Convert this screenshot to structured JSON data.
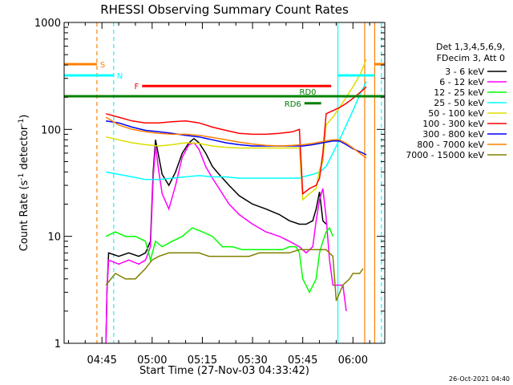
{
  "chart_data": {
    "type": "line",
    "title": "RHESSI Observing Summary Count Rates",
    "ylabel_main": "Count Rate (s",
    "ylabel_sup1": "-1",
    "ylabel_mid": " detector",
    "ylabel_sup2": "-1",
    "ylabel_end": ")",
    "xlabel": "Start Time (27-Nov-03 04:33:42)",
    "footer": "26-Oct-2021 04:40",
    "ylog": true,
    "ylim": [
      1,
      1000
    ],
    "xlim_minutes": [
      273.7,
      369.5
    ],
    "yticks": [
      {
        "v": 1,
        "label": "1"
      },
      {
        "v": 10,
        "label": "10"
      },
      {
        "v": 100,
        "label": "100"
      },
      {
        "v": 1000,
        "label": "1000"
      }
    ],
    "xticks": [
      {
        "t": 285,
        "label": "04:45"
      },
      {
        "t": 300,
        "label": "05:00"
      },
      {
        "t": 315,
        "label": "05:15"
      },
      {
        "t": 330,
        "label": "05:30"
      },
      {
        "t": 345,
        "label": "05:45"
      },
      {
        "t": 360,
        "label": "06:00"
      }
    ],
    "legend_header": [
      "Det 1,3,4,5,6,9,",
      "FDecim 3, Att 0"
    ],
    "series": [
      {
        "name": "3 - 6 keV",
        "color": "#000000",
        "points": [
          [
            286.2,
            1
          ],
          [
            286.5,
            3
          ],
          [
            287,
            7
          ],
          [
            290,
            6.5
          ],
          [
            293,
            7
          ],
          [
            296,
            6.5
          ],
          [
            298,
            7
          ],
          [
            299.5,
            9
          ],
          [
            300.3,
            40
          ],
          [
            301,
            80
          ],
          [
            302,
            55
          ],
          [
            303,
            38
          ],
          [
            305,
            30
          ],
          [
            307,
            40
          ],
          [
            309,
            60
          ],
          [
            311,
            75
          ],
          [
            312.5,
            82
          ],
          [
            314,
            75
          ],
          [
            316,
            60
          ],
          [
            318,
            45
          ],
          [
            320,
            38
          ],
          [
            323,
            30
          ],
          [
            326,
            24
          ],
          [
            330,
            20
          ],
          [
            334,
            18
          ],
          [
            338,
            16
          ],
          [
            341,
            14
          ],
          [
            344,
            13
          ],
          [
            346,
            13
          ],
          [
            348,
            14
          ],
          [
            349,
            18
          ],
          [
            350,
            26
          ],
          [
            351,
            14
          ],
          [
            352,
            13
          ]
        ]
      },
      {
        "name": "6 - 12 keV",
        "color": "#ff00ff",
        "points": [
          [
            286.2,
            1
          ],
          [
            286.5,
            3
          ],
          [
            287,
            6
          ],
          [
            290,
            5.5
          ],
          [
            293,
            6
          ],
          [
            296,
            5.5
          ],
          [
            298,
            6
          ],
          [
            299.5,
            8
          ],
          [
            300.3,
            35
          ],
          [
            301,
            70
          ],
          [
            302,
            40
          ],
          [
            303,
            25
          ],
          [
            305,
            18
          ],
          [
            307,
            30
          ],
          [
            309,
            55
          ],
          [
            311,
            72
          ],
          [
            312.5,
            75
          ],
          [
            314,
            65
          ],
          [
            316,
            45
          ],
          [
            318,
            35
          ],
          [
            320,
            28
          ],
          [
            323,
            20
          ],
          [
            326,
            16
          ],
          [
            330,
            13
          ],
          [
            334,
            11
          ],
          [
            338,
            10
          ],
          [
            341,
            9
          ],
          [
            344,
            8
          ],
          [
            346,
            7
          ],
          [
            348,
            8
          ],
          [
            349,
            14
          ],
          [
            350,
            22
          ],
          [
            351,
            28
          ],
          [
            352,
            15
          ],
          [
            353,
            6
          ],
          [
            354,
            3.5
          ],
          [
            357,
            3.5
          ],
          [
            358,
            2
          ]
        ]
      },
      {
        "name": "12 - 25 keV",
        "color": "#00ff00",
        "points": [
          [
            286.2,
            10
          ],
          [
            289,
            11
          ],
          [
            292,
            10
          ],
          [
            295,
            10
          ],
          [
            298,
            9
          ],
          [
            299.5,
            6
          ],
          [
            301,
            9
          ],
          [
            303,
            8
          ],
          [
            306,
            9
          ],
          [
            309,
            10
          ],
          [
            312,
            12
          ],
          [
            315,
            11
          ],
          [
            318,
            10
          ],
          [
            321,
            8
          ],
          [
            324,
            8
          ],
          [
            327,
            7.5
          ],
          [
            330,
            7.5
          ],
          [
            333,
            7.5
          ],
          [
            336,
            7.5
          ],
          [
            339,
            7.5
          ],
          [
            341,
            8
          ],
          [
            343,
            8
          ],
          [
            344,
            7
          ],
          [
            345,
            4
          ],
          [
            347,
            3
          ],
          [
            349,
            4
          ],
          [
            350,
            7
          ],
          [
            351,
            9
          ],
          [
            352,
            11
          ],
          [
            353,
            12
          ],
          [
            354,
            10
          ]
        ]
      },
      {
        "name": "25 - 50 keV",
        "color": "#00ffff",
        "points": [
          [
            286.2,
            40
          ],
          [
            290,
            38
          ],
          [
            294,
            36
          ],
          [
            298,
            34
          ],
          [
            302,
            34
          ],
          [
            306,
            35
          ],
          [
            310,
            36
          ],
          [
            314,
            37
          ],
          [
            318,
            36
          ],
          [
            322,
            36
          ],
          [
            326,
            35
          ],
          [
            330,
            35
          ],
          [
            334,
            35
          ],
          [
            338,
            35
          ],
          [
            342,
            35
          ],
          [
            344,
            35
          ],
          [
            345,
            36
          ],
          [
            348,
            38
          ],
          [
            350,
            40
          ],
          [
            352,
            45
          ],
          [
            354,
            60
          ],
          [
            356,
            80
          ],
          [
            358,
            110
          ],
          [
            360,
            150
          ],
          [
            362,
            210
          ],
          [
            364,
            280
          ]
        ]
      },
      {
        "name": "50 - 100 keV",
        "color": "#dddd00",
        "points": [
          [
            286.2,
            85
          ],
          [
            290,
            80
          ],
          [
            294,
            75
          ],
          [
            298,
            72
          ],
          [
            302,
            70
          ],
          [
            306,
            72
          ],
          [
            310,
            75
          ],
          [
            314,
            74
          ],
          [
            318,
            70
          ],
          [
            322,
            68
          ],
          [
            326,
            67
          ],
          [
            330,
            67
          ],
          [
            334,
            67
          ],
          [
            338,
            67
          ],
          [
            342,
            67
          ],
          [
            344,
            67
          ],
          [
            345,
            22
          ],
          [
            347,
            25
          ],
          [
            349,
            28
          ],
          [
            350,
            42
          ],
          [
            351,
            50
          ],
          [
            352,
            110
          ],
          [
            354,
            130
          ],
          [
            356,
            160
          ],
          [
            358,
            200
          ],
          [
            360,
            250
          ],
          [
            362,
            320
          ],
          [
            364,
            450
          ]
        ]
      },
      {
        "name": "100 - 300 keV",
        "color": "#ff0000",
        "points": [
          [
            286.2,
            140
          ],
          [
            290,
            130
          ],
          [
            294,
            120
          ],
          [
            298,
            115
          ],
          [
            302,
            115
          ],
          [
            306,
            118
          ],
          [
            310,
            120
          ],
          [
            314,
            115
          ],
          [
            318,
            105
          ],
          [
            322,
            98
          ],
          [
            326,
            92
          ],
          [
            330,
            90
          ],
          [
            334,
            90
          ],
          [
            338,
            92
          ],
          [
            342,
            95
          ],
          [
            344,
            100
          ],
          [
            345,
            25
          ],
          [
            347,
            28
          ],
          [
            349,
            30
          ],
          [
            350,
            35
          ],
          [
            351,
            60
          ],
          [
            352,
            140
          ],
          [
            354,
            150
          ],
          [
            356,
            160
          ],
          [
            358,
            175
          ],
          [
            360,
            195
          ],
          [
            362,
            220
          ],
          [
            364,
            250
          ]
        ]
      },
      {
        "name": "300 - 800 keV",
        "color": "#0000ff",
        "points": [
          [
            286.2,
            120
          ],
          [
            290,
            115
          ],
          [
            294,
            105
          ],
          [
            298,
            98
          ],
          [
            302,
            95
          ],
          [
            306,
            92
          ],
          [
            310,
            88
          ],
          [
            314,
            85
          ],
          [
            318,
            80
          ],
          [
            322,
            75
          ],
          [
            326,
            72
          ],
          [
            330,
            70
          ],
          [
            334,
            70
          ],
          [
            338,
            70
          ],
          [
            342,
            70
          ],
          [
            345,
            70
          ],
          [
            348,
            72
          ],
          [
            351,
            75
          ],
          [
            354,
            78
          ],
          [
            356,
            78
          ],
          [
            358,
            72
          ],
          [
            360,
            66
          ],
          [
            362,
            62
          ],
          [
            364,
            58
          ]
        ]
      },
      {
        "name": "800 - 7000 keV",
        "color": "#ff8000",
        "points": [
          [
            286.2,
            130
          ],
          [
            290,
            110
          ],
          [
            294,
            100
          ],
          [
            298,
            95
          ],
          [
            302,
            92
          ],
          [
            306,
            90
          ],
          [
            310,
            90
          ],
          [
            314,
            88
          ],
          [
            318,
            84
          ],
          [
            322,
            80
          ],
          [
            326,
            76
          ],
          [
            330,
            73
          ],
          [
            334,
            71
          ],
          [
            338,
            70
          ],
          [
            342,
            71
          ],
          [
            345,
            72
          ],
          [
            348,
            74
          ],
          [
            351,
            77
          ],
          [
            354,
            80
          ],
          [
            356,
            80
          ],
          [
            358,
            74
          ],
          [
            360,
            67
          ],
          [
            362,
            60
          ],
          [
            364,
            54
          ]
        ]
      },
      {
        "name": "7000 - 15000 keV",
        "color": "#808000",
        "points": [
          [
            286.2,
            3.5
          ],
          [
            289,
            4.5
          ],
          [
            292,
            4
          ],
          [
            295,
            4
          ],
          [
            298,
            5
          ],
          [
            300,
            6
          ],
          [
            302,
            6.5
          ],
          [
            305,
            7
          ],
          [
            308,
            7
          ],
          [
            311,
            7
          ],
          [
            314,
            7
          ],
          [
            317,
            6.5
          ],
          [
            320,
            6.5
          ],
          [
            323,
            6.5
          ],
          [
            326,
            6.5
          ],
          [
            329,
            6.5
          ],
          [
            332,
            7
          ],
          [
            335,
            7
          ],
          [
            338,
            7
          ],
          [
            341,
            7
          ],
          [
            344,
            7.5
          ],
          [
            347,
            7.5
          ],
          [
            350,
            7.5
          ],
          [
            352,
            7.5
          ],
          [
            354,
            6.5
          ],
          [
            355,
            2.5
          ],
          [
            357,
            3.5
          ],
          [
            359,
            4
          ],
          [
            360,
            4.5
          ],
          [
            362,
            4.5
          ],
          [
            363,
            5
          ]
        ]
      }
    ],
    "flag_bars": [
      {
        "label": "S",
        "color": "#ff8000",
        "t0": 273.7,
        "t1": 283.5,
        "y_frac": 0.87,
        "label_pos": "right"
      },
      {
        "label": "S",
        "color": "#ff8000",
        "t0": 366.5,
        "t1": 369.5,
        "y_frac": 0.87,
        "label_pos": "none"
      },
      {
        "label": "N",
        "color": "#00ffff",
        "t0": 273.7,
        "t1": 288.5,
        "y_frac": 0.835,
        "label_pos": "right"
      },
      {
        "label": "N",
        "color": "#00ffff",
        "t0": 355.5,
        "t1": 366.5,
        "y_frac": 0.835,
        "label_pos": "none"
      },
      {
        "label": "F",
        "color": "#ff0000",
        "t0": 297,
        "t1": 353.5,
        "y_frac": 0.802,
        "label_pos": "left"
      },
      {
        "label": "RD0",
        "color": "#008000",
        "t0": 273.7,
        "t1": 369.5,
        "y_frac": 0.77,
        "label_pos": "above-right"
      },
      {
        "label": "RD6",
        "color": "#008000",
        "t0": 345.5,
        "t1": 350.5,
        "y_frac": 0.748,
        "label_pos": "left"
      }
    ],
    "vlines": [
      {
        "t": 283.5,
        "color": "#ff8000",
        "style": "dashed"
      },
      {
        "t": 288.5,
        "color": "#00ffff",
        "style": "dashed"
      },
      {
        "t": 355.5,
        "color": "#00ffff",
        "style": "solid"
      },
      {
        "t": 363.5,
        "color": "#ff8000",
        "style": "solid"
      },
      {
        "t": 366.5,
        "color": "#ff8000",
        "style": "solid"
      },
      {
        "t": 368.5,
        "color": "#00ffff",
        "style": "dashed"
      }
    ]
  }
}
